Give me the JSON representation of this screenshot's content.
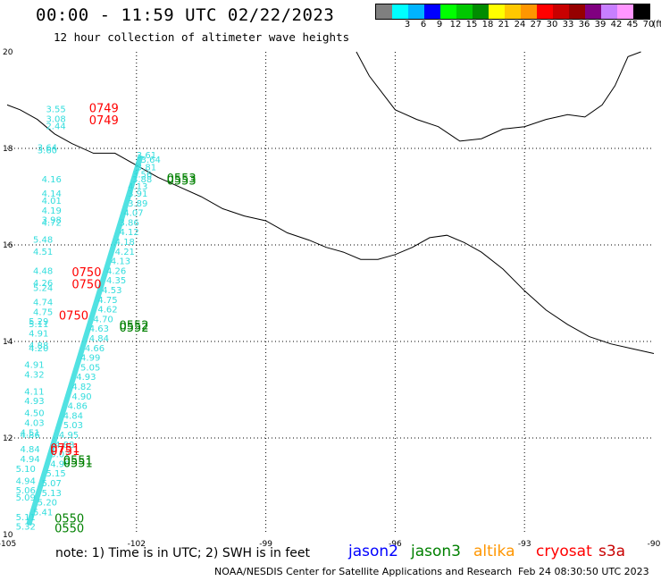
{
  "header": {
    "title": "00:00 - 11:59 UTC 02/22/2023",
    "subtitle": "12 hour collection of altimeter wave heights"
  },
  "colorbar": {
    "unit_label": "(ft)",
    "swatches": [
      {
        "color": "#7f7f7f",
        "label": ""
      },
      {
        "color": "#00ffff",
        "label": "3"
      },
      {
        "color": "#00b4ff",
        "label": "6"
      },
      {
        "color": "#0000ff",
        "label": "9"
      },
      {
        "color": "#00ff00",
        "label": "12"
      },
      {
        "color": "#00c800",
        "label": "15"
      },
      {
        "color": "#008c00",
        "label": "18"
      },
      {
        "color": "#ffff00",
        "label": "21"
      },
      {
        "color": "#ffc800",
        "label": "24"
      },
      {
        "color": "#ff9600",
        "label": "27"
      },
      {
        "color": "#ff0000",
        "label": "30"
      },
      {
        "color": "#c80000",
        "label": "33"
      },
      {
        "color": "#960000",
        "label": "36"
      },
      {
        "color": "#800080",
        "label": "39"
      },
      {
        "color": "#c87fff",
        "label": "42"
      },
      {
        "color": "#ff96ff",
        "label": "45"
      },
      {
        "color": "#000000",
        "label": "70"
      }
    ]
  },
  "map": {
    "lon_range": [
      -105,
      -90
    ],
    "lat_range": [
      10,
      20
    ],
    "lon_ticks": [
      "-105",
      "-102",
      "-99",
      "-96",
      "-93",
      "-90"
    ],
    "lat_ticks": [
      "20",
      "18",
      "16",
      "14",
      "12",
      "10"
    ],
    "colors": {
      "jason3": "#008000",
      "cryosat": "#ff0000",
      "track": "#33dddd",
      "missing": "#808080"
    },
    "pass_times": [
      {
        "text": "0749",
        "sat": "cryosat",
        "lon": -103.1,
        "lat": 18.75
      },
      {
        "text": "0749",
        "sat": "cryosat",
        "lon": -103.1,
        "lat": 18.5
      },
      {
        "text": "0553",
        "sat": "jason3",
        "lon": -101.3,
        "lat": 17.3
      },
      {
        "text": "0553",
        "sat": "jason3",
        "lon": -101.3,
        "lat": 17.25
      },
      {
        "text": "0750",
        "sat": "cryosat",
        "lon": -103.5,
        "lat": 15.35
      },
      {
        "text": "0750",
        "sat": "cryosat",
        "lon": -103.5,
        "lat": 15.1
      },
      {
        "text": "0750",
        "sat": "cryosat",
        "lon": -103.8,
        "lat": 14.45
      },
      {
        "text": "0552",
        "sat": "jason3",
        "lon": -102.4,
        "lat": 14.25
      },
      {
        "text": "0552",
        "sat": "jason3",
        "lon": -102.4,
        "lat": 14.2
      },
      {
        "text": "0751",
        "sat": "cryosat",
        "lon": -104.0,
        "lat": 11.7
      },
      {
        "text": "0751",
        "sat": "cryosat",
        "lon": -104.0,
        "lat": 11.65
      },
      {
        "text": "0551",
        "sat": "jason3",
        "lon": -103.7,
        "lat": 11.45
      },
      {
        "text": "0551",
        "sat": "jason3",
        "lon": -103.7,
        "lat": 11.4
      },
      {
        "text": "0550",
        "sat": "jason3",
        "lon": -103.9,
        "lat": 10.25
      },
      {
        "text": "0550",
        "sat": "jason3",
        "lon": -103.9,
        "lat": 10.05
      }
    ],
    "cryosat_swh": [
      {
        "value": "3.55",
        "lon": -104.1,
        "lat": 18.75
      },
      {
        "value": "3.08",
        "lon": -104.1,
        "lat": 18.55
      },
      {
        "value": "2.44",
        "lon": -104.1,
        "lat": 18.4
      },
      {
        "value": "3.64",
        "lon": -104.3,
        "lat": 17.95
      },
      {
        "value": "3.60",
        "lon": -104.3,
        "lat": 17.9
      },
      {
        "value": "4.16",
        "lon": -104.2,
        "lat": 17.3
      },
      {
        "value": "4.14",
        "lon": -104.2,
        "lat": 17.0
      },
      {
        "value": "4.01",
        "lon": -104.2,
        "lat": 16.85
      },
      {
        "value": "4.19",
        "lon": -104.2,
        "lat": 16.65
      },
      {
        "value": "3.98",
        "lon": -104.2,
        "lat": 16.45
      },
      {
        "value": "4.72",
        "lon": -104.2,
        "lat": 16.4
      },
      {
        "value": "5.48",
        "lon": -104.4,
        "lat": 16.05
      },
      {
        "value": "4.51",
        "lon": -104.4,
        "lat": 15.8
      },
      {
        "value": "4.48",
        "lon": -104.4,
        "lat": 15.4
      },
      {
        "value": "4.26",
        "lon": -104.4,
        "lat": 15.15
      },
      {
        "value": "5.24",
        "lon": -104.4,
        "lat": 15.05
      },
      {
        "value": "4.74",
        "lon": -104.4,
        "lat": 14.75
      },
      {
        "value": "4.75",
        "lon": -104.4,
        "lat": 14.55
      },
      {
        "value": "5.29",
        "lon": -104.5,
        "lat": 14.35
      },
      {
        "value": "5.11",
        "lon": -104.5,
        "lat": 14.3
      },
      {
        "value": "4.91",
        "lon": -104.5,
        "lat": 14.1
      },
      {
        "value": "4.88",
        "lon": -104.5,
        "lat": 13.85
      },
      {
        "value": "4.20",
        "lon": -104.5,
        "lat": 13.8
      },
      {
        "value": "4.91",
        "lon": -104.6,
        "lat": 13.45
      },
      {
        "value": "4.32",
        "lon": -104.6,
        "lat": 13.25
      },
      {
        "value": "4.11",
        "lon": -104.6,
        "lat": 12.9
      },
      {
        "value": "4.93",
        "lon": -104.6,
        "lat": 12.7
      },
      {
        "value": "4.50",
        "lon": -104.6,
        "lat": 12.45
      },
      {
        "value": "4.03",
        "lon": -104.6,
        "lat": 12.25
      },
      {
        "value": "4.51",
        "lon": -104.7,
        "lat": 12.05
      },
      {
        "value": "4.86",
        "lon": -104.7,
        "lat": 12.0
      },
      {
        "value": "4.84",
        "lon": -104.7,
        "lat": 11.7
      },
      {
        "value": "4.94",
        "lon": -104.7,
        "lat": 11.5
      },
      {
        "value": "5.10",
        "lon": -104.8,
        "lat": 11.3
      },
      {
        "value": "4.94",
        "lon": -104.8,
        "lat": 11.05
      },
      {
        "value": "5.06",
        "lon": -104.8,
        "lat": 10.85
      },
      {
        "value": "5.09",
        "lon": -104.8,
        "lat": 10.7
      },
      {
        "value": "5.11",
        "lon": -104.8,
        "lat": 10.3
      },
      {
        "value": "5.32",
        "lon": -104.8,
        "lat": 10.1
      }
    ],
    "jason3_swh": [
      {
        "value": "3.61",
        "lon": -102.0,
        "lat": 17.8
      },
      {
        "value": "3.64",
        "lon": -101.9,
        "lat": 17.7
      },
      {
        "value": "3.81",
        "lon": -102.0,
        "lat": 17.55
      },
      {
        "value": "3.56",
        "lon": -102.1,
        "lat": 17.4
      },
      {
        "value": "3.88",
        "lon": -102.1,
        "lat": 17.3
      },
      {
        "value": "4.13",
        "lon": -102.2,
        "lat": 17.15
      },
      {
        "value": "3.91",
        "lon": -102.2,
        "lat": 17.0
      },
      {
        "value": "3.89",
        "lon": -102.2,
        "lat": 16.8
      },
      {
        "value": "4.07",
        "lon": -102.3,
        "lat": 16.6
      },
      {
        "value": "3.86",
        "lon": -102.4,
        "lat": 16.4
      },
      {
        "value": "4.12",
        "lon": -102.4,
        "lat": 16.2
      },
      {
        "value": "4.18",
        "lon": -102.5,
        "lat": 16.0
      },
      {
        "value": "4.21",
        "lon": -102.5,
        "lat": 15.8
      },
      {
        "value": "4.13",
        "lon": -102.6,
        "lat": 15.6
      },
      {
        "value": "4.26",
        "lon": -102.7,
        "lat": 15.4
      },
      {
        "value": "4.35",
        "lon": -102.7,
        "lat": 15.2
      },
      {
        "value": "4.53",
        "lon": -102.8,
        "lat": 15.0
      },
      {
        "value": "4.75",
        "lon": -102.9,
        "lat": 14.8
      },
      {
        "value": "4.62",
        "lon": -102.9,
        "lat": 14.6
      },
      {
        "value": "4.70",
        "lon": -103.0,
        "lat": 14.4
      },
      {
        "value": "4.63",
        "lon": -103.1,
        "lat": 14.2
      },
      {
        "value": "4.84",
        "lon": -103.1,
        "lat": 14.0
      },
      {
        "value": "4.66",
        "lon": -103.2,
        "lat": 13.8
      },
      {
        "value": "4.99",
        "lon": -103.3,
        "lat": 13.6
      },
      {
        "value": "5.05",
        "lon": -103.3,
        "lat": 13.4
      },
      {
        "value": "4.93",
        "lon": -103.4,
        "lat": 13.2
      },
      {
        "value": "4.82",
        "lon": -103.5,
        "lat": 13.0
      },
      {
        "value": "4.90",
        "lon": -103.5,
        "lat": 12.8
      },
      {
        "value": "4.86",
        "lon": -103.6,
        "lat": 12.6
      },
      {
        "value": "4.84",
        "lon": -103.7,
        "lat": 12.4
      },
      {
        "value": "5.03",
        "lon": -103.7,
        "lat": 12.2
      },
      {
        "value": "4.95",
        "lon": -103.8,
        "lat": 12.0
      },
      {
        "value": "4.88",
        "lon": -103.9,
        "lat": 11.8
      },
      {
        "value": "5.02",
        "lon": -104.0,
        "lat": 11.6
      },
      {
        "value": "4.98",
        "lon": -104.0,
        "lat": 11.4
      },
      {
        "value": "5.15",
        "lon": -104.1,
        "lat": 11.2
      },
      {
        "value": "5.07",
        "lon": -104.2,
        "lat": 11.0
      },
      {
        "value": "5.13",
        "lon": -104.2,
        "lat": 10.8
      },
      {
        "value": "5.20",
        "lon": -104.3,
        "lat": 10.6
      },
      {
        "value": "5.41",
        "lon": -104.4,
        "lat": 10.4
      }
    ]
  },
  "note": "note: 1) Time is in UTC; 2) SWH is in feet",
  "satellites": [
    {
      "name": "jason2",
      "color": "#0000ff"
    },
    {
      "name": "jason3",
      "color": "#008000"
    },
    {
      "name": "altika",
      "color": "#ff9600"
    },
    {
      "name": "cryosat",
      "color": "#ff0000"
    },
    {
      "name": "s3a",
      "color": "#c80000"
    }
  ],
  "footer": {
    "credit": "NOAA/NESDIS Center for Satellite Applications and Research",
    "timestamp": "Feb 24 08:30:50 UTC 2023"
  }
}
